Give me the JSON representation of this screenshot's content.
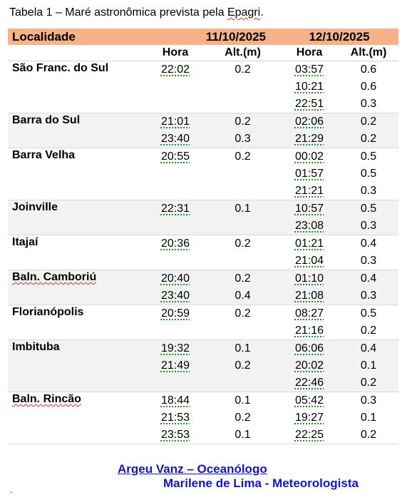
{
  "caption": {
    "prefix": "Tabela 1 – Maré astronômica prevista pela ",
    "agency": "Epagri",
    "suffix": "."
  },
  "header": {
    "localidade": "Localidade",
    "date1": "11/10/2025",
    "date2": "12/10/2025",
    "hora": "Hora",
    "alt": "Alt.(m)"
  },
  "rows": [
    {
      "name": "São Franc. do Sul",
      "d1": [
        [
          "22:02",
          "0.2"
        ]
      ],
      "d2": [
        [
          "03:57",
          "0.6"
        ],
        [
          "10:21",
          "0.6"
        ],
        [
          "22:51",
          "0.3"
        ]
      ]
    },
    {
      "name": "Barra do Sul",
      "d1": [
        [
          "21:01",
          "0.2"
        ],
        [
          "23:40",
          "0.3"
        ]
      ],
      "d2": [
        [
          "02:06",
          "0.2"
        ],
        [
          "21:29",
          "0.2"
        ]
      ]
    },
    {
      "name": "Barra Velha",
      "d1": [
        [
          "20:55",
          "0.2"
        ]
      ],
      "d2": [
        [
          "00:02",
          "0.5"
        ],
        [
          "01:57",
          "0.5"
        ],
        [
          "21:21",
          "0.3"
        ]
      ]
    },
    {
      "name": "Joinville",
      "d1": [
        [
          "22:31",
          "0.1"
        ]
      ],
      "d2": [
        [
          "10:57",
          "0.5"
        ],
        [
          "23:08",
          "0.3"
        ]
      ]
    },
    {
      "name": "Itajaí",
      "d1": [
        [
          "20:36",
          "0.2"
        ]
      ],
      "d2": [
        [
          "01:21",
          "0.4"
        ],
        [
          "21:04",
          "0.3"
        ]
      ]
    },
    {
      "name": "Baln. Camboriú",
      "d1": [
        [
          "20:40",
          "0.2"
        ],
        [
          "23:40",
          "0.4"
        ]
      ],
      "d2": [
        [
          "01:10",
          "0.4"
        ],
        [
          "21:08",
          "0.3"
        ]
      ]
    },
    {
      "name": "Florianópolis",
      "d1": [
        [
          "20:59",
          "0.2"
        ]
      ],
      "d2": [
        [
          "08:27",
          "0.5"
        ],
        [
          "21:16",
          "0.2"
        ]
      ]
    },
    {
      "name": "Imbituba",
      "d1": [
        [
          "19:32",
          "0.1"
        ],
        [
          "21:49",
          "0.2"
        ]
      ],
      "d2": [
        [
          "06:06",
          "0.4"
        ],
        [
          "20:02",
          "0.1"
        ],
        [
          "22:46",
          "0.2"
        ]
      ]
    },
    {
      "name": "Baln. Rincão",
      "d1": [
        [
          "18:44",
          "0.1"
        ],
        [
          "21:53",
          "0.2"
        ],
        [
          "23:53",
          "0.1"
        ]
      ],
      "d2": [
        [
          "05:42",
          "0.3"
        ],
        [
          "19:27",
          "0.1"
        ],
        [
          "22:25",
          "0.2"
        ]
      ]
    }
  ],
  "footer": {
    "line1": "Argeu Vanz – Oceanólogo",
    "line2": "Marilene de Lima - Meteorologista"
  },
  "colors": {
    "header_bg": "#f7b28a",
    "footer_text": "#1515b5"
  }
}
